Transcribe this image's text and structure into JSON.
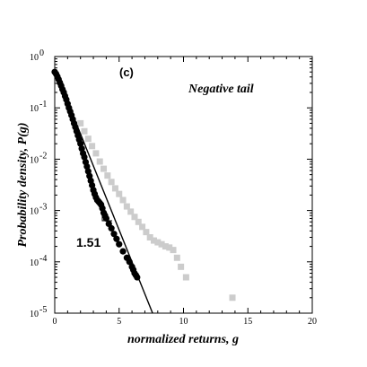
{
  "chart_data": {
    "type": "scatter",
    "panel_label": "(c)",
    "annotation": "Negative tail",
    "xlabel": "normalized returns, g",
    "ylabel": "Probability density, P(g)",
    "xlim": [
      0,
      20
    ],
    "ylim": [
      1e-05,
      1
    ],
    "y_scale": "log",
    "x_ticks": [
      "0",
      "5",
      "10",
      "15",
      "20"
    ],
    "y_ticks": [
      {
        "base": "10",
        "exp": "0",
        "value": 1
      },
      {
        "base": "10",
        "exp": "-1",
        "value": 0.1
      },
      {
        "base": "10",
        "exp": "-2",
        "value": 0.01
      },
      {
        "base": "10",
        "exp": "-3",
        "value": 0.001
      },
      {
        "base": "10",
        "exp": "-4",
        "value": 0.0001
      },
      {
        "base": "10",
        "exp": "-5",
        "value": 1e-05
      }
    ],
    "slope_label": "1.51",
    "colors": {
      "black_series": "#000000",
      "gray_series": "#cccccc",
      "fit_line": "#000000"
    },
    "series": [
      {
        "marker": "filled-circle",
        "color": "#000000",
        "x": [
          0.0,
          0.1,
          0.2,
          0.3,
          0.4,
          0.5,
          0.6,
          0.7,
          0.8,
          0.9,
          1.0,
          1.1,
          1.2,
          1.3,
          1.4,
          1.5,
          1.6,
          1.7,
          1.8,
          1.9,
          2.0,
          2.1,
          2.2,
          2.3,
          2.4,
          2.5,
          2.6,
          2.7,
          2.8,
          2.9,
          3.0,
          3.1,
          3.2,
          3.3,
          3.4,
          3.5,
          3.6,
          3.7,
          3.8,
          3.9,
          4.0,
          4.2,
          4.4,
          4.6,
          4.8,
          5.0,
          5.3,
          5.6,
          5.8,
          6.0,
          6.1,
          6.2,
          6.3,
          6.4
        ],
        "y": [
          0.5,
          0.46,
          0.41,
          0.36,
          0.31,
          0.27,
          0.23,
          0.2,
          0.17,
          0.145,
          0.12,
          0.1,
          0.085,
          0.072,
          0.06,
          0.05,
          0.042,
          0.035,
          0.029,
          0.024,
          0.02,
          0.016,
          0.013,
          0.011,
          0.0088,
          0.0072,
          0.0058,
          0.0047,
          0.0038,
          0.0031,
          0.0025,
          0.0021,
          0.0018,
          0.0016,
          0.0015,
          0.0014,
          0.0013,
          0.0011,
          0.0009,
          0.0008,
          0.0007,
          0.00055,
          0.00045,
          0.00035,
          0.00028,
          0.00022,
          0.00016,
          0.00012,
          0.0001,
          8e-05,
          7e-05,
          6e-05,
          5.5e-05,
          5e-05
        ]
      },
      {
        "marker": "filled-square",
        "color": "#cccccc",
        "x": [
          2.0,
          2.3,
          2.6,
          2.9,
          3.2,
          3.5,
          3.8,
          4.1,
          4.4,
          4.7,
          5.0,
          5.3,
          5.6,
          5.9,
          6.2,
          6.5,
          6.8,
          7.1,
          7.4,
          7.7,
          8.0,
          8.3,
          8.6,
          8.9,
          9.2,
          9.5,
          9.8,
          10.2,
          13.8
        ],
        "y": [
          0.05,
          0.035,
          0.025,
          0.018,
          0.013,
          0.009,
          0.0065,
          0.0048,
          0.0036,
          0.0027,
          0.0021,
          0.0016,
          0.0012,
          0.00095,
          0.00075,
          0.0006,
          0.00048,
          0.00038,
          0.0003,
          0.00026,
          0.00024,
          0.00022,
          0.0002,
          0.00019,
          0.00017,
          0.00012,
          8e-05,
          5e-05,
          2e-05
        ]
      }
    ],
    "fit_line": {
      "x": [
        0,
        7.6
      ],
      "y": [
        0.55,
        1e-05
      ]
    }
  }
}
